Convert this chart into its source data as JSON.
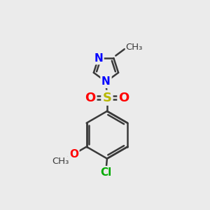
{
  "background_color": "#ebebeb",
  "bond_color": "#3a3a3a",
  "nitrogen_color": "#0000ff",
  "oxygen_color": "#ff0000",
  "sulfur_color": "#b8b800",
  "chlorine_color": "#00aa00",
  "line_width": 1.8,
  "figsize": [
    3.0,
    3.0
  ],
  "dpi": 100,
  "xlim": [
    0,
    10
  ],
  "ylim": [
    0,
    10
  ]
}
